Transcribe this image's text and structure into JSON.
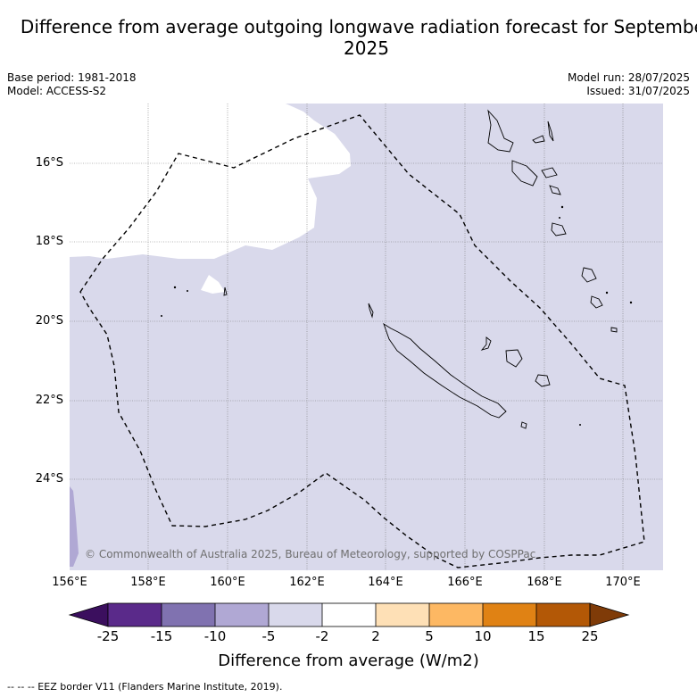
{
  "title": "Difference from average outgoing longwave radiation forecast for September 2025",
  "meta": {
    "base_period": "Base period: 1981-2018",
    "model": "Model: ACCESS-S2",
    "model_run": "Model run: 28/07/2025",
    "issued": "Issued: 31/07/2025"
  },
  "axes": {
    "lat_labels": [
      "16°S",
      "18°S",
      "20°S",
      "22°S",
      "24°S"
    ],
    "lon_labels": [
      "156°E",
      "158°E",
      "160°E",
      "162°E",
      "164°E",
      "166°E",
      "168°E",
      "170°E"
    ]
  },
  "colorbar": {
    "title": "Difference from average (W/m2)",
    "ticks": [
      "-25",
      "-15",
      "-10",
      "-5",
      "-2",
      "2",
      "5",
      "10",
      "15",
      "25"
    ],
    "colors": [
      "#3b0f5e",
      "#5a2a8a",
      "#8072b0",
      "#b0a8d4",
      "#d9d9eb",
      "#ffffff",
      "#fee0b6",
      "#fdb863",
      "#e08214",
      "#b35806",
      "#7f3b08"
    ]
  },
  "credit": "© Commonwealth of Australia 2025, Bureau of Meteorology, supported by COSPPac",
  "eez_note": "--  --  -- EEZ border V11 (Flanders Marine Institute, 2019).",
  "map_colors": {
    "neutral_fill": "#d9d9eb",
    "white_region": "#ffffff",
    "slight_negative": "#b0a8d4"
  }
}
